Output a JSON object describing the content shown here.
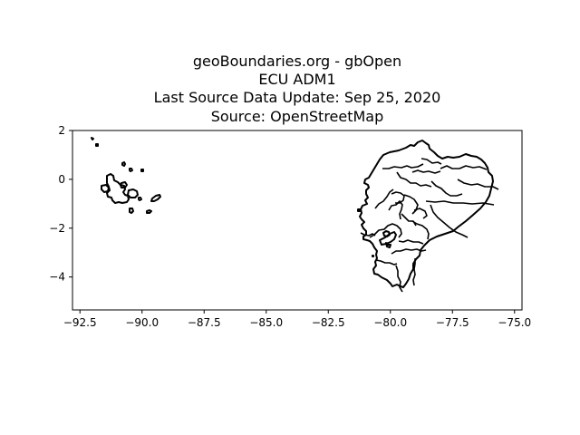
{
  "title_lines": [
    "geoBoundaries.org - gbOpen",
    "ECU ADM1",
    "Last Source Data Update: Sep 25, 2020",
    "Source: OpenStreetMap"
  ],
  "chart_data": {
    "type": "map",
    "xlim": [
      -92.8,
      -74.7
    ],
    "ylim": [
      -5.35,
      2.0
    ],
    "x_ticks": [
      -92.5,
      -90.0,
      -87.5,
      -85.0,
      -82.5,
      -80.0,
      -77.5,
      -75.0
    ],
    "x_tick_labels": [
      "−92.5",
      "−90.0",
      "−87.5",
      "−85.0",
      "−82.5",
      "−80.0",
      "−77.5",
      "−75.0"
    ],
    "y_ticks": [
      2,
      0,
      -2,
      -4
    ],
    "y_tick_labels": [
      "2",
      "0",
      "−2",
      "−4"
    ],
    "grid": false,
    "legend": "none"
  }
}
